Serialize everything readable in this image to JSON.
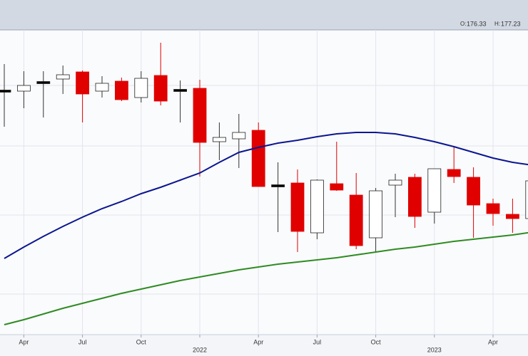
{
  "chart_data": {
    "type": "candlestick",
    "ohlc_header": [
      {
        "label": "O:",
        "value": "176.33"
      },
      {
        "label": "H:",
        "value": "177.23"
      }
    ],
    "categories": [
      null,
      "Apr",
      null,
      null,
      "Jul",
      null,
      null,
      "Oct",
      null,
      null,
      "2022",
      null,
      null,
      "Apr",
      null,
      null,
      "Jul",
      null,
      null,
      "Oct",
      null,
      null,
      "2023",
      null,
      null,
      "Apr",
      null,
      null
    ],
    "open": [
      207.5,
      207.5,
      210.5,
      211.75,
      214.25,
      207.5,
      211,
      205.25,
      213,
      207.75,
      208.5,
      189.75,
      190.75,
      193.75,
      174.25,
      175.25,
      157.75,
      175,
      171,
      156,
      174.5,
      177.25,
      165,
      180,
      177.25,
      168,
      164.25,
      162.75
    ],
    "high": [
      217,
      214.5,
      214.5,
      216.5,
      214.75,
      212.75,
      212.25,
      214.5,
      224.5,
      211.25,
      211.5,
      196.5,
      199.5,
      196.5,
      182.5,
      180,
      176.5,
      189.75,
      178.75,
      173.5,
      178.5,
      178.5,
      180.25,
      187.75,
      180.75,
      169.75,
      169.75,
      178.25
    ],
    "low": [
      195,
      201.5,
      198.25,
      206.5,
      196.5,
      205.25,
      204,
      203.5,
      202.5,
      196.5,
      177.5,
      183.25,
      180.5,
      174,
      158,
      151,
      155.5,
      172.5,
      152,
      151,
      163.25,
      159.5,
      161,
      175.25,
      156,
      160.25,
      157.75,
      162
    ],
    "close": [
      207.5,
      209.5,
      210.5,
      213.25,
      206.5,
      210.25,
      204.5,
      212,
      204,
      207.75,
      189.5,
      191.25,
      193,
      174,
      174.25,
      158.25,
      176.25,
      172.75,
      153.25,
      172.5,
      176.25,
      163.5,
      180.25,
      177.5,
      167.5,
      164.5,
      162.75,
      176
    ],
    "up_color": "#ffffff",
    "down_color": "#e00000",
    "flat_color": "#000000",
    "lines": [
      {
        "color": "#0b1690",
        "values": [
          148.75,
          152.75,
          156.5,
          160,
          163.25,
          166.25,
          168.75,
          171.5,
          173.75,
          176.25,
          178.75,
          182.5,
          186,
          187.75,
          189.25,
          190.25,
          191.5,
          192.5,
          193,
          193,
          192.5,
          191.25,
          189.75,
          188,
          186,
          184,
          182.5,
          181.5
        ]
      },
      {
        "color": "#2e8b22",
        "values": [
          125.5,
          127.25,
          129.25,
          131.25,
          133,
          134.75,
          136.5,
          138,
          139.5,
          141,
          142.25,
          143.5,
          144.75,
          145.75,
          146.75,
          147.5,
          148.25,
          149,
          150,
          151,
          152,
          152.75,
          153.75,
          154.75,
          155.5,
          156.25,
          157,
          158
        ]
      }
    ],
    "ylim": [
      122,
      229
    ],
    "yticks": [
      136.25,
      164,
      188.25,
      209.5
    ],
    "grid": true
  }
}
